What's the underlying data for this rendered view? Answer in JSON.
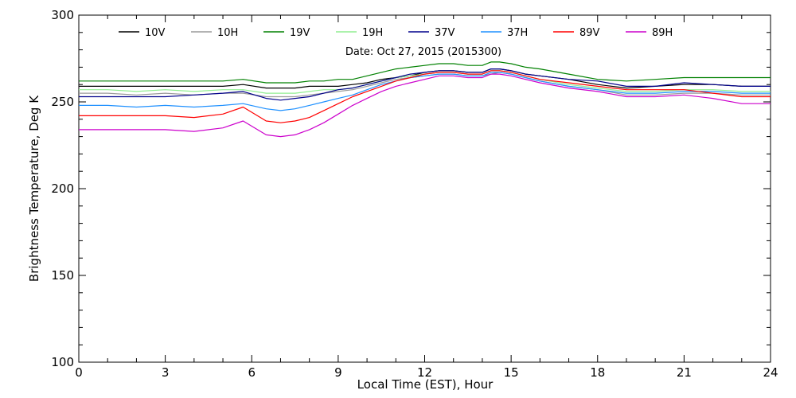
{
  "chart_data": {
    "type": "line",
    "title": "",
    "annotation": "Date: Oct 27, 2015 (2015300)",
    "xlabel": "Local Time (EST), Hour",
    "ylabel": "Brightness Temperature, Deg K",
    "xlim": [
      0,
      24
    ],
    "ylim": [
      100,
      300
    ],
    "xticks": [
      0,
      3,
      6,
      9,
      12,
      15,
      18,
      21,
      24
    ],
    "yticks": [
      100,
      150,
      200,
      250,
      300
    ],
    "grid": false,
    "legend_position": "top",
    "x": [
      0,
      1,
      2,
      3,
      4,
      5,
      5.7,
      6.5,
      7,
      7.5,
      8,
      8.5,
      9,
      9.5,
      10,
      10.5,
      11,
      11.5,
      12,
      12.5,
      13,
      13.5,
      14,
      14.3,
      14.6,
      15,
      15.5,
      16,
      17,
      18,
      19,
      20,
      21,
      22,
      23,
      24
    ],
    "series": [
      {
        "name": "10V",
        "color": "#000000",
        "values": [
          259,
          259,
          259,
          259,
          259,
          259,
          260,
          258,
          258,
          258,
          259,
          259,
          259,
          260,
          261,
          263,
          264,
          265,
          267,
          268,
          268,
          267,
          267,
          269,
          269,
          268,
          266,
          265,
          263,
          260,
          258,
          259,
          260,
          260,
          259,
          259
        ]
      },
      {
        "name": "10H",
        "color": "#9a9a9a",
        "values": [
          255,
          255,
          254,
          255,
          254,
          255,
          255,
          253,
          253,
          253,
          254,
          255,
          256,
          257,
          259,
          261,
          263,
          264,
          265,
          266,
          266,
          265,
          265,
          266,
          267,
          266,
          264,
          262,
          259,
          257,
          254,
          254,
          255,
          255,
          254,
          254
        ]
      },
      {
        "name": "19V",
        "color": "#008000",
        "values": [
          262,
          262,
          262,
          262,
          262,
          262,
          263,
          261,
          261,
          261,
          262,
          262,
          263,
          263,
          265,
          267,
          269,
          270,
          271,
          272,
          272,
          271,
          271,
          273,
          273,
          272,
          270,
          269,
          266,
          263,
          262,
          263,
          264,
          264,
          264,
          264
        ]
      },
      {
        "name": "19H",
        "color": "#90ee90",
        "values": [
          257,
          257,
          256,
          257,
          256,
          257,
          257,
          255,
          255,
          255,
          256,
          257,
          257,
          258,
          260,
          262,
          264,
          265,
          266,
          267,
          267,
          266,
          266,
          268,
          268,
          267,
          265,
          263,
          260,
          258,
          256,
          256,
          257,
          257,
          256,
          256
        ]
      },
      {
        "name": "37V",
        "color": "#00008b",
        "values": [
          253,
          253,
          253,
          253,
          254,
          255,
          256,
          252,
          251,
          252,
          253,
          255,
          257,
          258,
          260,
          262,
          264,
          266,
          267,
          268,
          268,
          267,
          267,
          269,
          269,
          268,
          266,
          265,
          263,
          262,
          259,
          259,
          261,
          260,
          259,
          259
        ]
      },
      {
        "name": "37H",
        "color": "#1e90ff",
        "values": [
          248,
          248,
          247,
          248,
          247,
          248,
          249,
          246,
          245,
          246,
          248,
          250,
          252,
          254,
          257,
          260,
          262,
          264,
          265,
          266,
          266,
          265,
          265,
          267,
          267,
          266,
          264,
          262,
          259,
          257,
          255,
          255,
          256,
          256,
          255,
          255
        ]
      },
      {
        "name": "89V",
        "color": "#ff0000",
        "values": [
          242,
          242,
          242,
          242,
          241,
          243,
          247,
          239,
          238,
          239,
          241,
          245,
          249,
          253,
          256,
          259,
          262,
          264,
          266,
          267,
          267,
          266,
          266,
          268,
          268,
          267,
          265,
          263,
          261,
          259,
          257,
          257,
          257,
          255,
          253,
          253
        ]
      },
      {
        "name": "89H",
        "color": "#cc00cc",
        "values": [
          234,
          234,
          234,
          234,
          233,
          235,
          239,
          231,
          230,
          231,
          234,
          238,
          243,
          248,
          252,
          256,
          259,
          261,
          263,
          265,
          265,
          264,
          264,
          266,
          266,
          265,
          263,
          261,
          258,
          256,
          253,
          253,
          254,
          252,
          249,
          249
        ]
      }
    ]
  }
}
